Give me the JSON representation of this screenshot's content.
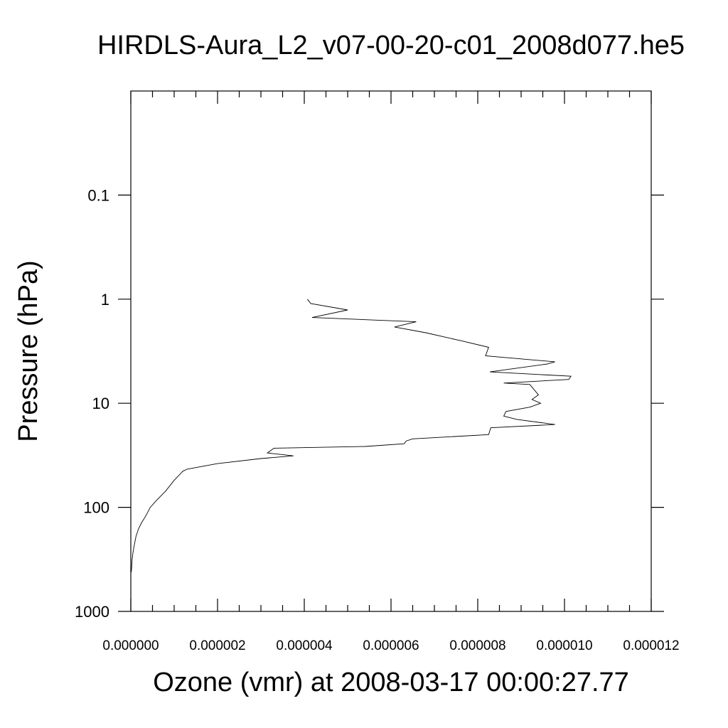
{
  "chart_data": {
    "type": "line",
    "title": "HIRDLS-Aura_L2_v07-00-20-c01_2008d077.he5",
    "xlabel": "Ozone (vmr) at 2008-03-17 00:00:27.77",
    "ylabel": "Pressure (hPa)",
    "xlim": [
      0,
      1.2e-05
    ],
    "ylim": [
      1000,
      0.01
    ],
    "y_scale": "log",
    "y_reversed": true,
    "grid": false,
    "x_ticks": [
      {
        "value": 0,
        "label": "0.000000"
      },
      {
        "value": 2e-06,
        "label": "0.000002"
      },
      {
        "value": 4e-06,
        "label": "0.000004"
      },
      {
        "value": 6e-06,
        "label": "0.000006"
      },
      {
        "value": 8e-06,
        "label": "0.000008"
      },
      {
        "value": 1e-05,
        "label": "0.000010"
      },
      {
        "value": 1.2e-05,
        "label": "0.000012"
      }
    ],
    "y_ticks": [
      {
        "value": 0.1,
        "label": "0.1"
      },
      {
        "value": 1,
        "label": "1"
      },
      {
        "value": 10,
        "label": "10"
      },
      {
        "value": 100,
        "label": "100"
      },
      {
        "value": 1000,
        "label": "1000"
      }
    ],
    "series": [
      {
        "x": [
          4.07e-06,
          4.15e-06,
          5e-06,
          4.18e-06,
          6.58e-06,
          6.08e-06,
          6.8e-06,
          7.6e-06,
          8.25e-06,
          8.18e-06,
          8.5e-06,
          9.78e-06,
          9.6e-06,
          8.28e-06,
          1.015e-05,
          1.01e-05,
          8.6e-06,
          9.2e-06,
          9.4e-06,
          9.25e-06,
          9.45e-06,
          9.2e-06,
          8.65e-06,
          8.6e-06,
          8.9e-06,
          9.78e-06,
          8.3e-06,
          8.25e-06,
          6.5e-06,
          6.35e-06,
          6.3e-06,
          5.4e-06,
          3.3e-06,
          3.15e-06,
          3.75e-06,
          3e-06,
          2e-06,
          1.3e-06,
          1.2e-06,
          1e-06,
          8e-07,
          6e-07,
          4.5e-07,
          3.5e-07,
          2.5e-07,
          1.8e-07,
          1.2e-07,
          8e-08,
          5e-08,
          3e-08,
          2e-08,
          1e-08
        ],
        "y": [
          1.0,
          1.1,
          1.27,
          1.5,
          1.65,
          1.85,
          2.1,
          2.5,
          2.9,
          3.5,
          3.6,
          4.0,
          4.2,
          5.0,
          5.5,
          5.9,
          6.4,
          6.6,
          8.3,
          9.2,
          10.0,
          10.9,
          12.0,
          13.3,
          14.3,
          16.0,
          17.2,
          20.0,
          22.0,
          23.0,
          24.5,
          26.0,
          27.0,
          30.0,
          32.0,
          34.0,
          38.0,
          43.0,
          45.0,
          55.0,
          70.0,
          85.0,
          100.0,
          120.0,
          140.0,
          160.0,
          190.0,
          230.0,
          270.0,
          320.0,
          380.0,
          420.0
        ]
      }
    ]
  }
}
